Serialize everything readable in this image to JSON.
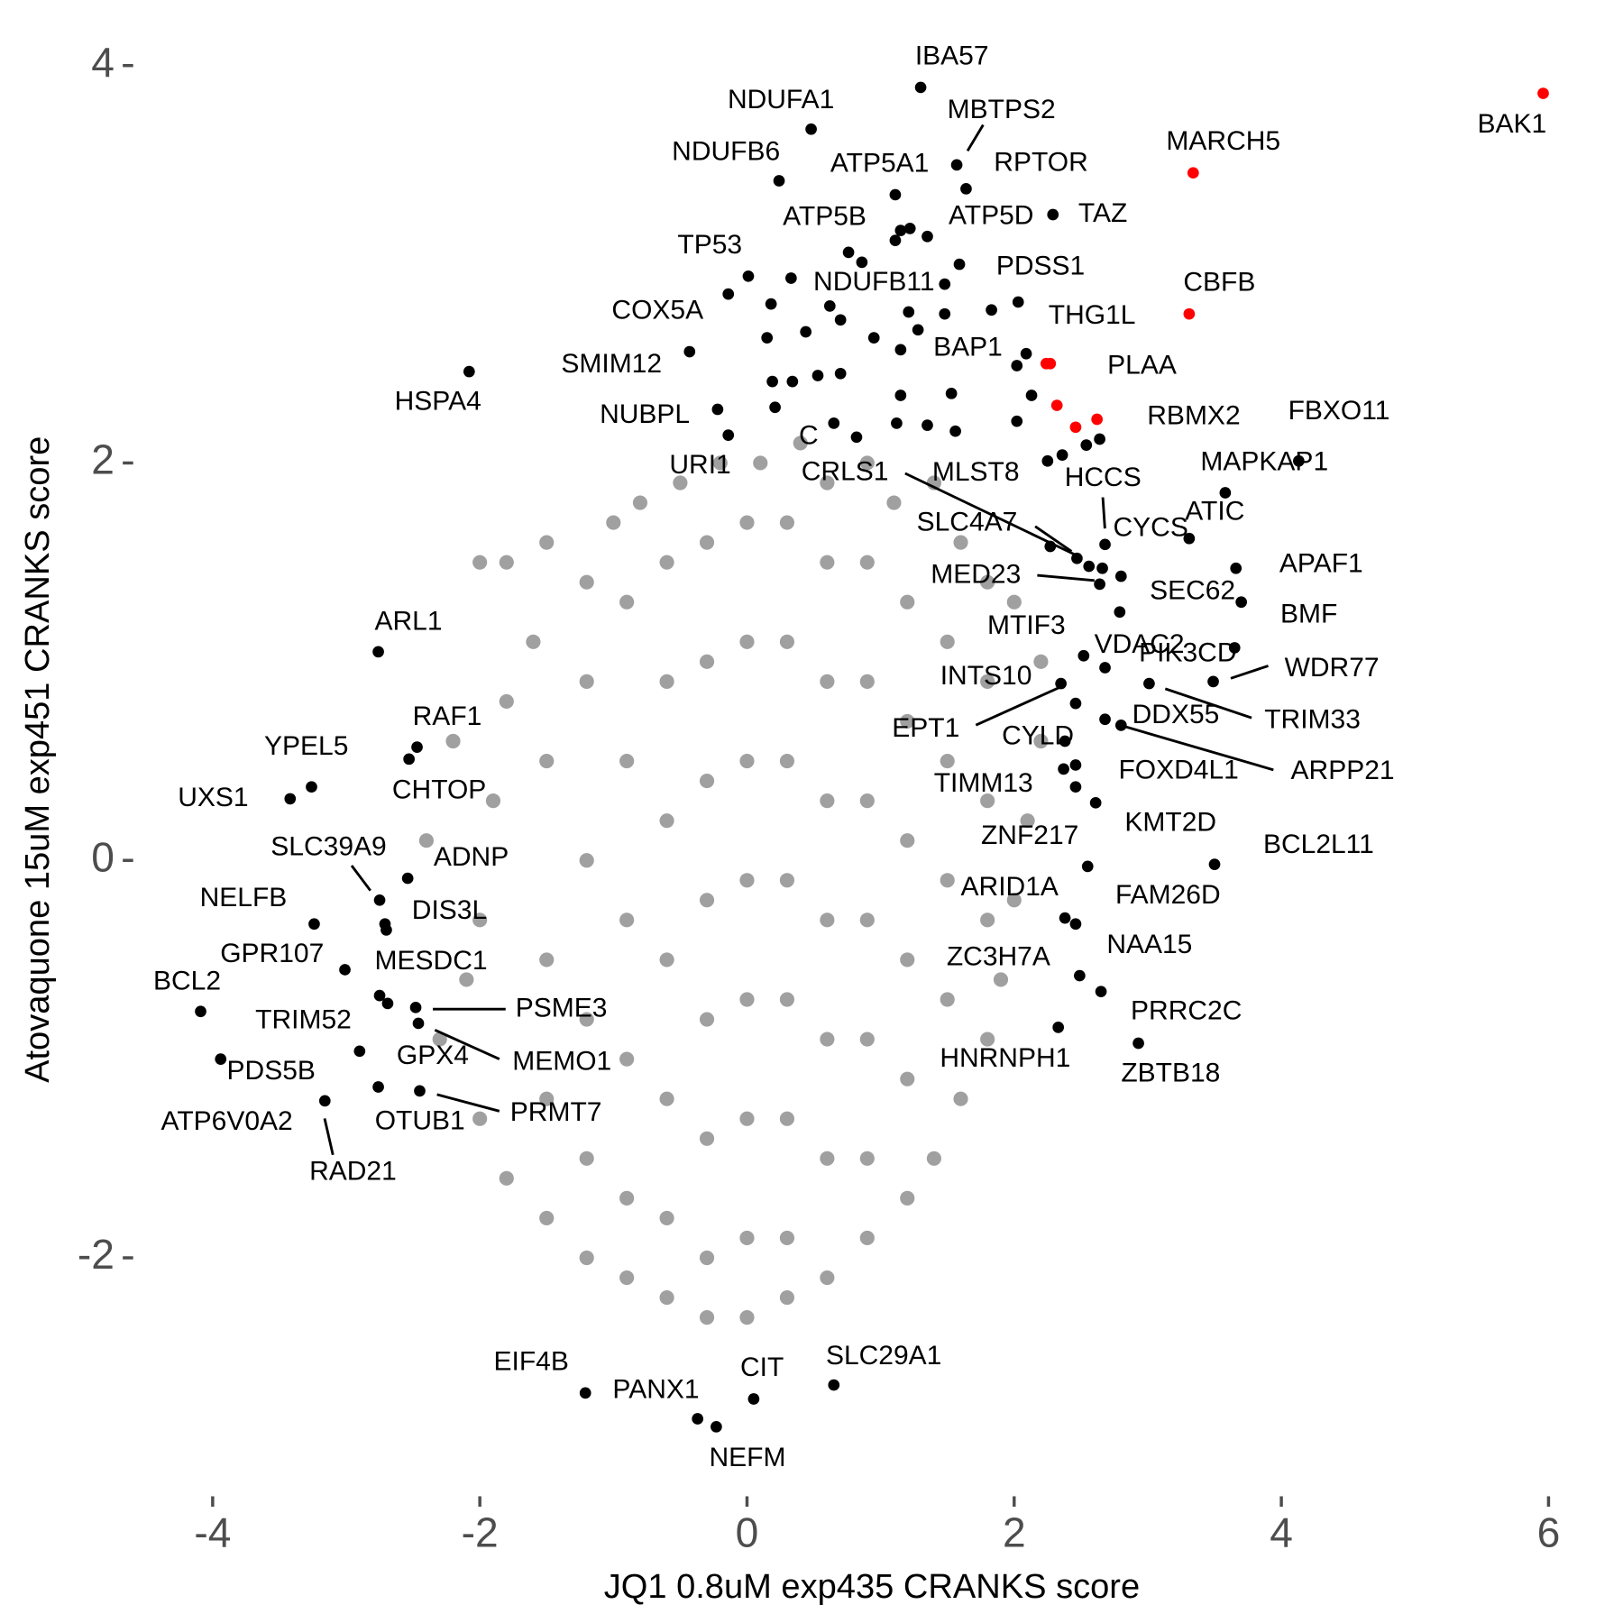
{
  "chart_data": {
    "type": "scatter",
    "x_label": "JQ1 0.8uM exp435 CRANKS score",
    "y_label": "Atovaquone 15uM exp451 CRANKS score",
    "xlim": [
      -4.5,
      6.2
    ],
    "ylim": [
      -3.2,
      4.1
    ],
    "xticks": [
      -4,
      -2,
      0,
      2,
      4,
      6
    ],
    "yticks": [
      -2,
      0,
      2,
      4
    ],
    "grid": false,
    "series": [
      {
        "color": "#a0a0a0",
        "x": [
          -2.0,
          -1.8,
          -2.4,
          -2.3,
          -2.2,
          -1.6,
          -1.5,
          -1.2,
          -1.0,
          -0.8,
          -0.5,
          -0.2,
          0.1,
          0.4,
          0.6,
          0.9,
          1.1,
          1.4,
          1.6,
          1.8,
          2.0,
          2.2,
          2.2,
          2.1,
          2.0,
          1.9,
          1.8,
          1.6,
          1.4,
          1.2,
          0.9,
          0.6,
          0.3,
          0.0,
          -0.3,
          -0.6,
          -0.9,
          -1.2,
          -1.5,
          -1.8,
          -2.0,
          -2.1,
          -2.0,
          -1.9,
          -1.8,
          -1.5,
          -1.5,
          -1.5,
          -1.2,
          -1.2,
          -1.2,
          -1.2,
          -0.9,
          -0.9,
          -0.9,
          -0.9,
          -0.9,
          -0.6,
          -0.6,
          -0.6,
          -0.6,
          -0.6,
          -0.6,
          -0.3,
          -0.3,
          -0.3,
          -0.3,
          -0.3,
          -0.3,
          -0.3,
          0.0,
          0.0,
          0.0,
          0.0,
          0.0,
          0.0,
          0.0,
          0.3,
          0.3,
          0.3,
          0.3,
          0.3,
          0.3,
          0.3,
          0.6,
          0.6,
          0.6,
          0.6,
          0.6,
          0.6,
          0.9,
          0.9,
          0.9,
          0.9,
          0.9,
          0.9,
          1.2,
          1.2,
          1.2,
          1.2,
          1.2,
          1.5,
          1.5,
          1.5,
          1.5,
          1.8,
          1.8,
          1.8
        ],
        "y": [
          1.5,
          1.5,
          0.1,
          -0.9,
          0.6,
          1.1,
          1.6,
          1.4,
          1.7,
          1.8,
          1.9,
          2.0,
          2.0,
          2.1,
          1.9,
          2.0,
          1.8,
          1.9,
          1.6,
          1.4,
          1.3,
          1.0,
          0.6,
          0.2,
          -0.2,
          -0.6,
          -0.9,
          -1.2,
          -1.5,
          -1.7,
          -1.9,
          -2.1,
          -2.2,
          -2.3,
          -2.3,
          -2.2,
          -2.1,
          -2.0,
          -1.8,
          -1.6,
          -1.3,
          -0.6,
          -0.3,
          0.3,
          0.8,
          0.5,
          -0.5,
          -1.2,
          0.9,
          0.0,
          -0.8,
          -1.5,
          1.3,
          0.5,
          -0.3,
          -1.0,
          -1.7,
          1.5,
          0.9,
          0.2,
          -0.5,
          -1.2,
          -1.8,
          1.6,
          1.0,
          0.4,
          -0.2,
          -0.8,
          -1.4,
          -2.0,
          1.7,
          1.1,
          0.5,
          -0.1,
          -0.7,
          -1.3,
          -1.9,
          1.7,
          1.1,
          0.5,
          -0.1,
          -0.7,
          -1.3,
          -1.9,
          1.5,
          0.9,
          0.3,
          -0.3,
          -0.9,
          -1.5,
          1.5,
          0.9,
          0.3,
          -0.3,
          -0.9,
          -1.5,
          1.3,
          0.7,
          0.1,
          -0.5,
          -1.1,
          1.1,
          0.5,
          -0.1,
          -0.7,
          0.9,
          0.3,
          -0.3
        ]
      },
      {
        "color": "#000000",
        "x": [
          1.3,
          0.48,
          1.57,
          1.64,
          0.24,
          1.11,
          0.76,
          1.22,
          2.29,
          0.01,
          1.48,
          1.59,
          -0.14,
          2.03,
          -0.43,
          2.09,
          -2.08,
          -0.22,
          -0.14,
          0.82,
          2.47,
          2.25,
          2.64,
          4.13,
          2.68,
          3.58,
          2.27,
          3.31,
          3.66,
          2.64,
          2.79,
          3.7,
          2.52,
          2.68,
          3.65,
          3.49,
          2.35,
          3.01,
          2.46,
          2.68,
          2.38,
          2.8,
          2.37,
          2.46,
          2.61,
          2.46,
          3.5,
          2.55,
          2.38,
          2.46,
          2.49,
          2.65,
          2.33,
          2.93,
          -2.76,
          -2.47,
          -3.26,
          -2.53,
          -3.42,
          -2.75,
          -2.54,
          -3.24,
          -2.71,
          -3.01,
          -2.7,
          -4.09,
          -2.69,
          -2.48,
          -2.75,
          -2.46,
          -2.9,
          -2.45,
          -3.94,
          -2.76,
          -3.16,
          -1.21,
          -0.37,
          -0.23,
          0.05,
          0.65
        ],
        "y": [
          3.89,
          3.68,
          3.5,
          3.38,
          3.42,
          3.35,
          3.06,
          3.18,
          3.25,
          2.94,
          2.9,
          3.0,
          2.85,
          2.81,
          2.56,
          2.55,
          2.46,
          2.27,
          2.14,
          2.13,
          1.52,
          2.01,
          2.12,
          2.01,
          1.59,
          1.85,
          1.58,
          1.62,
          1.47,
          1.39,
          1.25,
          1.3,
          1.03,
          0.97,
          1.07,
          0.9,
          0.89,
          0.89,
          0.79,
          0.71,
          0.6,
          0.68,
          0.46,
          0.48,
          0.29,
          0.37,
          -0.02,
          -0.03,
          -0.29,
          -0.32,
          -0.58,
          -0.66,
          -0.84,
          -0.92,
          1.05,
          0.57,
          0.37,
          0.51,
          0.31,
          -0.2,
          -0.09,
          -0.32,
          -0.32,
          -0.55,
          -0.35,
          -0.76,
          -0.72,
          -0.74,
          -0.68,
          -0.82,
          -0.96,
          -1.16,
          -1.0,
          -1.14,
          -1.21,
          -2.68,
          -2.81,
          -2.85,
          -2.71,
          -2.64
        ],
        "labels": [
          "IBA57",
          "NDUFA1",
          "MBTPS2",
          "RPTOR",
          "NDUFB6",
          "ATP5A1",
          "ATP5B",
          "ATP5D",
          "TAZ",
          "TP53",
          "NDUFB11",
          "PDSS1",
          "COX5A",
          "THG1L",
          "SMIM12",
          "BAP1",
          "HSPA4",
          "NUBPL",
          "URI1",
          "C",
          "CRLS1",
          "MLST8",
          "FBXO11",
          "MAPKAP1",
          "HCCS",
          "ATIC",
          "SLC4A7",
          "CYCS",
          "APAF1",
          "MED23",
          "SEC62",
          "BMF",
          "MTIF3",
          "VDAC2",
          "PIK3CD",
          "WDR77",
          "INTS10",
          "TRIM33",
          "EPT1",
          "DDX55",
          "CYLD",
          "ARPP21",
          "TIMM13",
          "FOXD4L1",
          "KMT2D",
          "ZNF217",
          "BCL2L11",
          "ARID1A",
          "FAM26D",
          "NAA15",
          "ZC3H7A",
          "PRRC2C",
          "HNRNPH1",
          "ZBTB18",
          "ARL1",
          "RAF1",
          "YPEL5",
          "CHTOP",
          "UXS1",
          "SLC39A9",
          "ADNP",
          "NELFB",
          "DIS3L",
          "GPR107",
          "MESDC1",
          "BCL2",
          "TRIM52",
          "PSME3",
          "GPX4",
          "MEMO1",
          "PDS5B",
          "PRMT7",
          "ATP6V0A2",
          "OTUB1",
          "RAD21",
          "EIF4B",
          "PANX1",
          "NEFM",
          "CIT",
          "SLC29A1"
        ]
      },
      {
        "color": "#000000",
        "x": [
          1.15,
          1.11,
          1.35,
          0.86,
          0.33,
          0.18,
          0.62,
          0.7,
          0.44,
          1.21,
          1.48,
          1.28,
          1.83,
          0.15,
          0.95,
          1.15,
          2.02,
          0.19,
          0.34,
          0.53,
          0.7,
          1.15,
          1.53,
          2.13,
          0.21,
          0.65,
          1.12,
          1.35,
          1.56,
          2.02,
          2.36,
          2.54,
          2.66,
          2.8,
          2.56
        ],
        "y": [
          3.17,
          3.12,
          3.14,
          3.01,
          2.93,
          2.8,
          2.79,
          2.72,
          2.66,
          2.76,
          2.75,
          2.67,
          2.77,
          2.63,
          2.63,
          2.57,
          2.49,
          2.41,
          2.41,
          2.44,
          2.45,
          2.34,
          2.35,
          2.34,
          2.28,
          2.2,
          2.2,
          2.19,
          2.16,
          2.21,
          2.04,
          2.09,
          1.47,
          1.43,
          1.48
        ]
      },
      {
        "color": "#ff0000",
        "x": [
          5.96,
          3.34,
          3.31,
          2.24,
          2.62,
          2.27,
          2.32,
          2.46
        ],
        "y": [
          3.86,
          3.46,
          2.75,
          2.5,
          2.22,
          2.5,
          2.29,
          2.18
        ],
        "labels": [
          "BAK1",
          "MARCH5",
          "CBFB",
          "PLAA",
          "RBMX2",
          null,
          null,
          null
        ]
      }
    ]
  }
}
